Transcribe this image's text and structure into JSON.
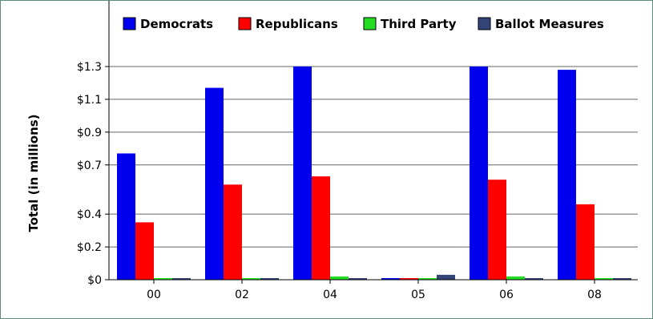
{
  "chart_data": {
    "type": "bar",
    "categories": [
      "00",
      "02",
      "04",
      "05",
      "06",
      "08"
    ],
    "series": [
      {
        "name": "Democrats",
        "color": "#0000ee",
        "values": [
          0.77,
          1.17,
          1.3,
          0.0,
          1.3,
          1.28
        ]
      },
      {
        "name": "Republicans",
        "color": "#ff0000",
        "values": [
          0.35,
          0.58,
          0.63,
          0.0,
          0.61,
          0.46
        ]
      },
      {
        "name": "Third Party",
        "color": "#22dd22",
        "values": [
          0.01,
          0.01,
          0.02,
          0.0,
          0.02,
          0.01
        ]
      },
      {
        "name": "Ballot Measures",
        "color": "#334477",
        "values": [
          0.0,
          0.0,
          0.0,
          0.03,
          0.0,
          0.0
        ]
      }
    ],
    "yticks": [
      0,
      0.2,
      0.4,
      0.7,
      0.9,
      1.1,
      1.3
    ],
    "ytick_labels": [
      "$0",
      "$0.2",
      "$0.4",
      "$0.7",
      "$0.9",
      "$1.1",
      "$1.3"
    ],
    "ylim": [
      0,
      1.3
    ],
    "ylabel": "Total (in millions)",
    "xlabel": "",
    "grid": true,
    "legend_position": "top"
  }
}
